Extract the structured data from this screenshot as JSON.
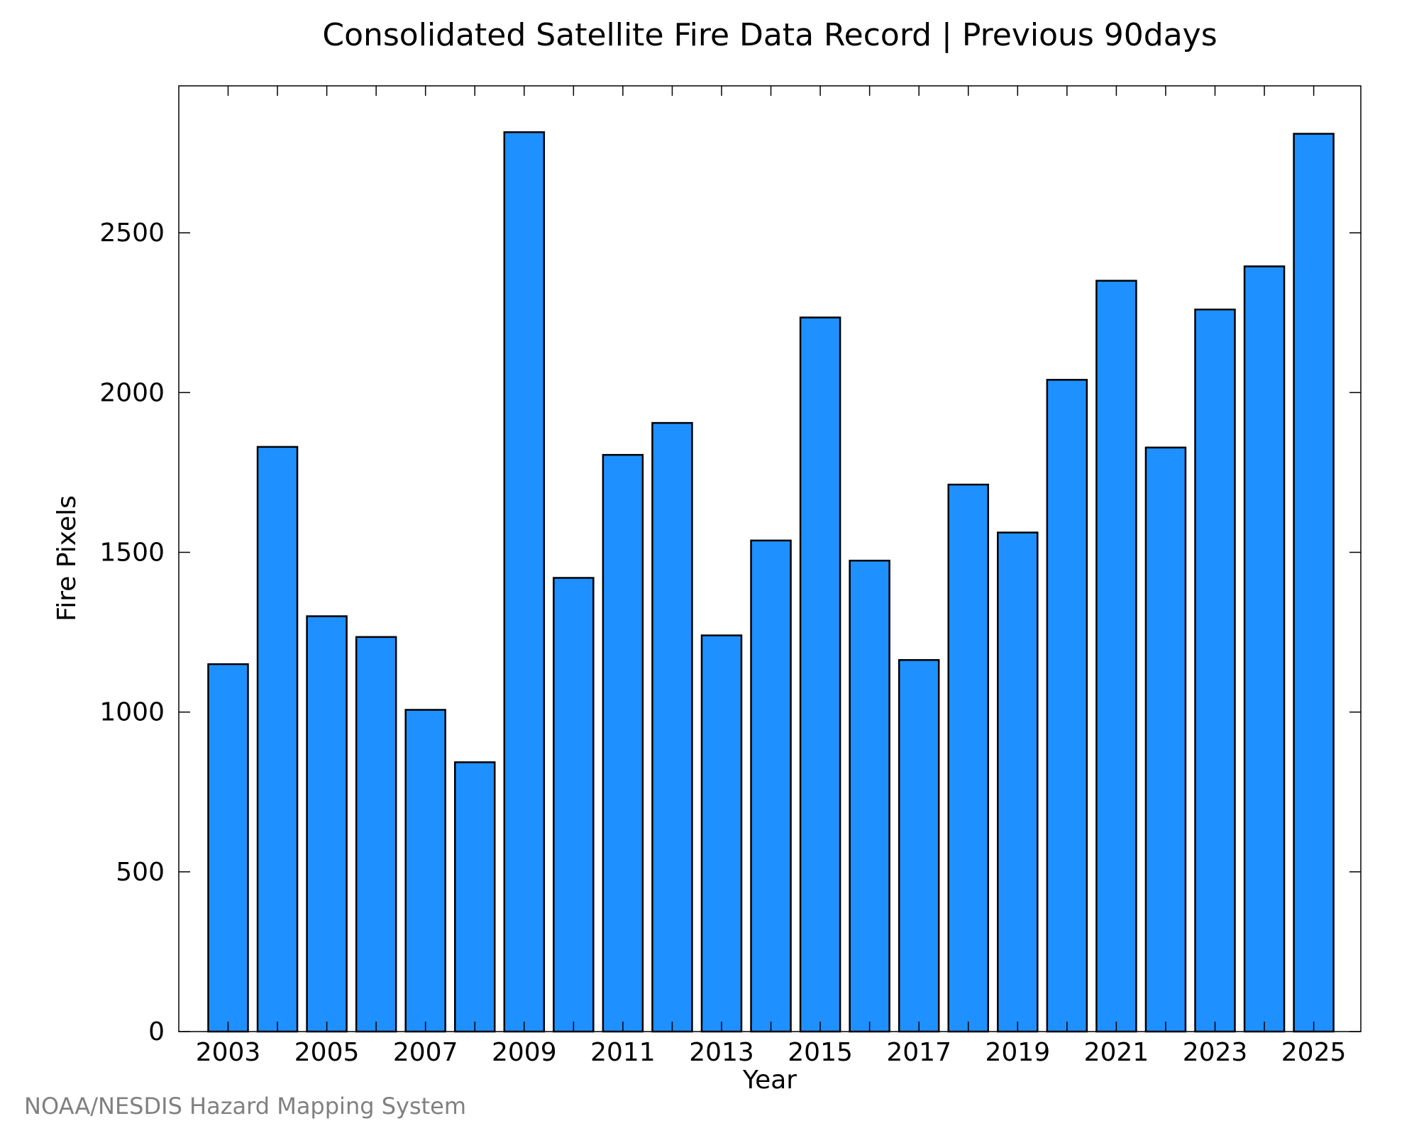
{
  "chart_data": {
    "type": "bar",
    "title": "Consolidated Satellite Fire Data Record | Previous 90days",
    "xlabel": "Year",
    "ylabel": "Fire Pixels",
    "categories": [
      "2003",
      "2004",
      "2005",
      "2006",
      "2007",
      "2008",
      "2009",
      "2010",
      "2011",
      "2012",
      "2013",
      "2014",
      "2015",
      "2016",
      "2017",
      "2018",
      "2019",
      "2020",
      "2021",
      "2022",
      "2023",
      "2024",
      "2025"
    ],
    "values": [
      1150,
      1830,
      1300,
      1235,
      1007,
      843,
      2815,
      1420,
      1805,
      1905,
      1240,
      1537,
      2235,
      1474,
      1163,
      1712,
      1562,
      2040,
      2350,
      1828,
      2260,
      2395,
      2810
    ],
    "x_tick_labels": [
      "2003",
      "2005",
      "2007",
      "2009",
      "2011",
      "2013",
      "2015",
      "2017",
      "2019",
      "2021",
      "2023",
      "2025"
    ],
    "y_ticks": [
      0,
      500,
      1000,
      1500,
      2000,
      2500
    ],
    "ylim": [
      0,
      2960
    ],
    "grid": false,
    "legend": "none",
    "bar_color": "#1E90FF",
    "bar_edge_color": "#000000"
  },
  "footer": {
    "source": "NOAA/NESDIS Hazard Mapping System"
  }
}
